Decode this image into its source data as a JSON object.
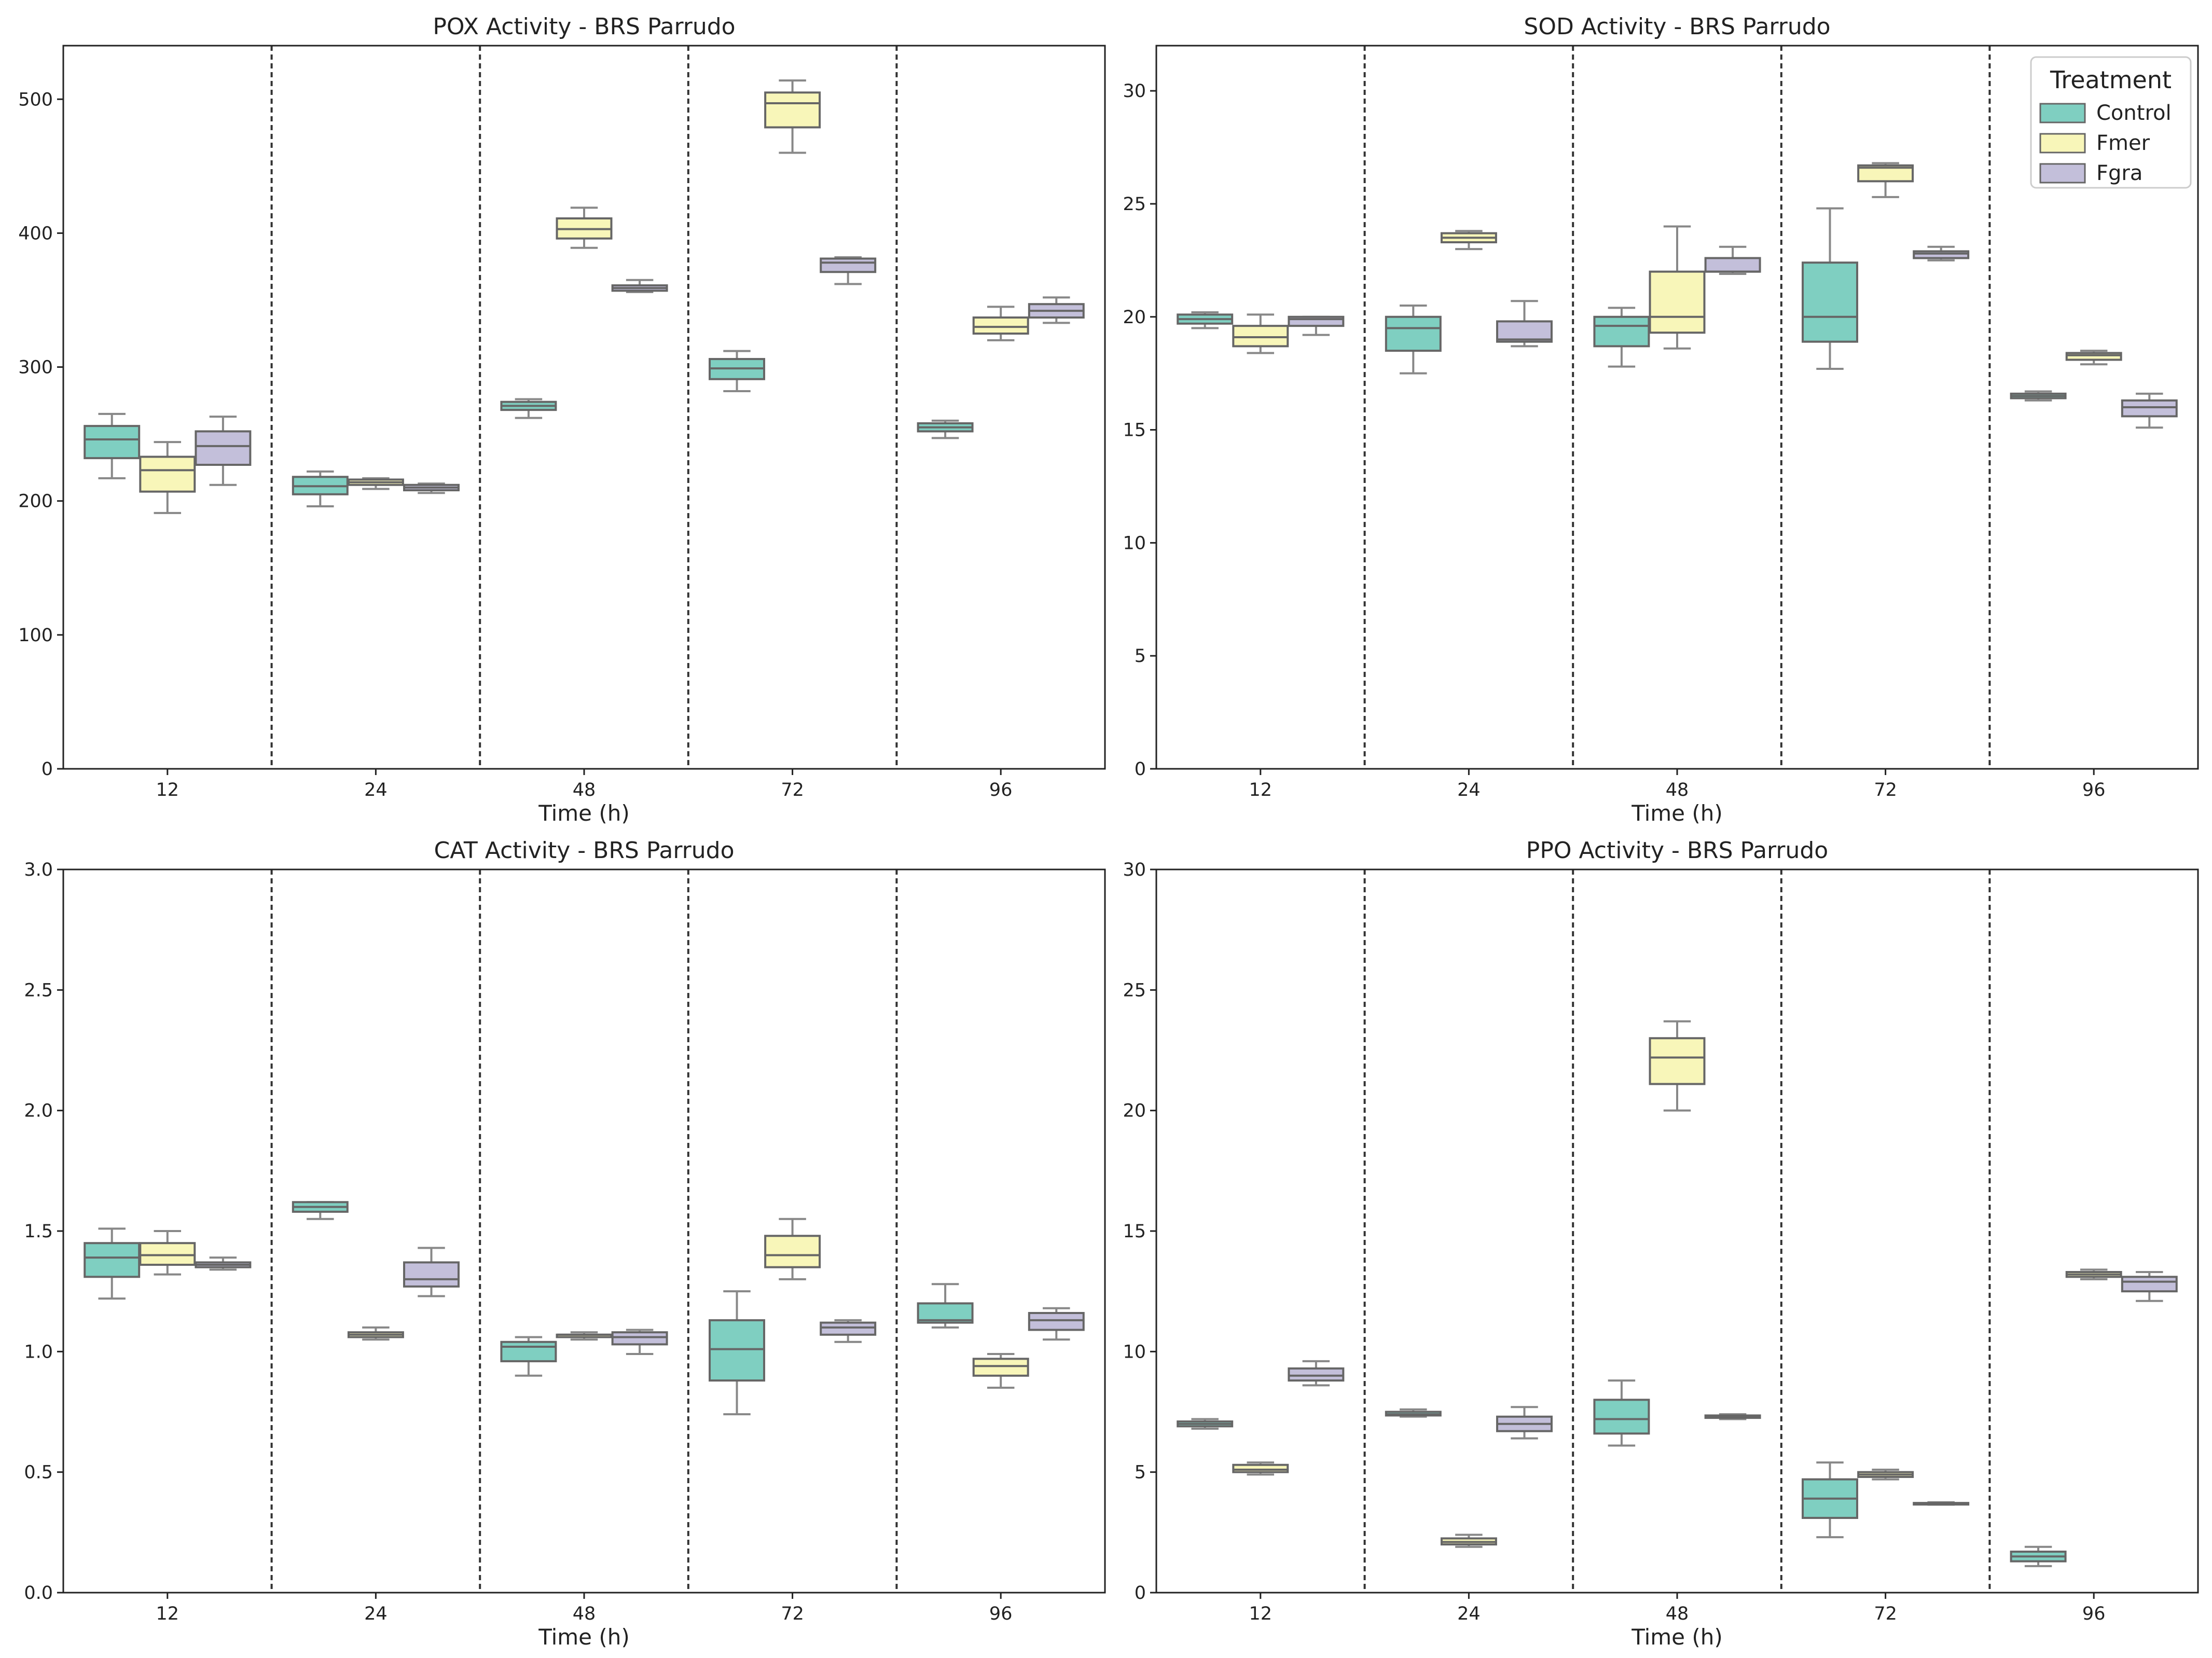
{
  "colors": {
    "Control": "#7fcfc1",
    "Fmer": "#f8f6b9",
    "Fgra": "#c3bfda",
    "median": "#666666",
    "whisker": "#888888",
    "axis": "#222222",
    "divider": "#333333"
  },
  "legend": {
    "title": "Treatment",
    "entries": [
      "Control",
      "Fmer",
      "Fgra"
    ]
  },
  "chart_data": [
    {
      "type": "box",
      "title": "POX Activity - BRS Parrudo",
      "xlabel": "Time (h)",
      "ylabel": "",
      "categories": [
        "12",
        "24",
        "48",
        "72",
        "96"
      ],
      "ylim": [
        0,
        540
      ],
      "yticks": [
        "0",
        "100",
        "200",
        "300",
        "400",
        "500"
      ],
      "grid": false,
      "series": [
        {
          "name": "Control",
          "boxes": [
            {
              "min": 217,
              "q1": 232,
              "median": 246,
              "q3": 256,
              "max": 265
            },
            {
              "min": 196,
              "q1": 205,
              "median": 211,
              "q3": 218,
              "max": 222
            },
            {
              "min": 262,
              "q1": 268,
              "median": 271,
              "q3": 274,
              "max": 276
            },
            {
              "min": 282,
              "q1": 291,
              "median": 299,
              "q3": 306,
              "max": 312
            },
            {
              "min": 247,
              "q1": 252,
              "median": 255,
              "q3": 258,
              "max": 260
            }
          ]
        },
        {
          "name": "Fmer",
          "boxes": [
            {
              "min": 191,
              "q1": 207,
              "median": 223,
              "q3": 233,
              "max": 244
            },
            {
              "min": 209,
              "q1": 212,
              "median": 214,
              "q3": 216,
              "max": 217
            },
            {
              "min": 389,
              "q1": 396,
              "median": 403,
              "q3": 411,
              "max": 419
            },
            {
              "min": 460,
              "q1": 479,
              "median": 497,
              "q3": 505,
              "max": 514
            },
            {
              "min": 320,
              "q1": 325,
              "median": 330,
              "q3": 337,
              "max": 345
            }
          ]
        },
        {
          "name": "Fgra",
          "boxes": [
            {
              "min": 212,
              "q1": 227,
              "median": 241,
              "q3": 252,
              "max": 263
            },
            {
              "min": 206,
              "q1": 208,
              "median": 210,
              "q3": 212,
              "max": 213
            },
            {
              "min": 356,
              "q1": 357,
              "median": 359,
              "q3": 361,
              "max": 365
            },
            {
              "min": 362,
              "q1": 371,
              "median": 378,
              "q3": 381,
              "max": 382
            },
            {
              "min": 333,
              "q1": 337,
              "median": 342,
              "q3": 347,
              "max": 352
            }
          ]
        }
      ]
    },
    {
      "type": "box",
      "title": "SOD Activity - BRS Parrudo",
      "xlabel": "Time (h)",
      "ylabel": "",
      "categories": [
        "12",
        "24",
        "48",
        "72",
        "96"
      ],
      "ylim": [
        0,
        32
      ],
      "yticks": [
        "0",
        "5",
        "10",
        "15",
        "20",
        "25",
        "30"
      ],
      "grid": false,
      "legend_position": "top-right",
      "series": [
        {
          "name": "Control",
          "boxes": [
            {
              "min": 19.5,
              "q1": 19.7,
              "median": 19.9,
              "q3": 20.1,
              "max": 20.2
            },
            {
              "min": 17.5,
              "q1": 18.5,
              "median": 19.5,
              "q3": 20.0,
              "max": 20.5
            },
            {
              "min": 17.8,
              "q1": 18.7,
              "median": 19.6,
              "q3": 20.0,
              "max": 20.4
            },
            {
              "min": 17.7,
              "q1": 18.9,
              "median": 20.0,
              "q3": 22.4,
              "max": 24.8
            },
            {
              "min": 16.3,
              "q1": 16.4,
              "median": 16.5,
              "q3": 16.6,
              "max": 16.7
            }
          ]
        },
        {
          "name": "Fmer",
          "boxes": [
            {
              "min": 18.4,
              "q1": 18.7,
              "median": 19.1,
              "q3": 19.6,
              "max": 20.1
            },
            {
              "min": 23.0,
              "q1": 23.3,
              "median": 23.5,
              "q3": 23.7,
              "max": 23.8
            },
            {
              "min": 18.6,
              "q1": 19.3,
              "median": 20.0,
              "q3": 22.0,
              "max": 24.0
            },
            {
              "min": 25.3,
              "q1": 26.0,
              "median": 26.6,
              "q3": 26.7,
              "max": 26.8
            },
            {
              "min": 17.9,
              "q1": 18.1,
              "median": 18.3,
              "q3": 18.4,
              "max": 18.5
            }
          ]
        },
        {
          "name": "Fgra",
          "boxes": [
            {
              "min": 19.2,
              "q1": 19.6,
              "median": 19.9,
              "q3": 20.0,
              "max": 20.0
            },
            {
              "min": 18.7,
              "q1": 18.9,
              "median": 19.0,
              "q3": 19.8,
              "max": 20.7
            },
            {
              "min": 21.9,
              "q1": 22.0,
              "median": 22.0,
              "q3": 22.6,
              "max": 23.1
            },
            {
              "min": 22.5,
              "q1": 22.6,
              "median": 22.8,
              "q3": 22.9,
              "max": 23.1
            },
            {
              "min": 15.1,
              "q1": 15.6,
              "median": 16.0,
              "q3": 16.3,
              "max": 16.6
            }
          ]
        }
      ]
    },
    {
      "type": "box",
      "title": "CAT Activity - BRS Parrudo",
      "xlabel": "Time (h)",
      "ylabel": "",
      "categories": [
        "12",
        "24",
        "48",
        "72",
        "96"
      ],
      "ylim": [
        0,
        3.0
      ],
      "yticks": [
        "0.0",
        "0.5",
        "1.0",
        "1.5",
        "2.0",
        "2.5",
        "3.0"
      ],
      "grid": false,
      "series": [
        {
          "name": "Control",
          "boxes": [
            {
              "min": 1.22,
              "q1": 1.31,
              "median": 1.39,
              "q3": 1.45,
              "max": 1.51
            },
            {
              "min": 1.55,
              "q1": 1.58,
              "median": 1.6,
              "q3": 1.62,
              "max": 1.62
            },
            {
              "min": 0.9,
              "q1": 0.96,
              "median": 1.02,
              "q3": 1.04,
              "max": 1.06
            },
            {
              "min": 0.74,
              "q1": 0.88,
              "median": 1.01,
              "q3": 1.13,
              "max": 1.25
            },
            {
              "min": 1.1,
              "q1": 1.12,
              "median": 1.13,
              "q3": 1.2,
              "max": 1.28
            }
          ]
        },
        {
          "name": "Fmer",
          "boxes": [
            {
              "min": 1.32,
              "q1": 1.36,
              "median": 1.4,
              "q3": 1.45,
              "max": 1.5
            },
            {
              "min": 1.05,
              "q1": 1.06,
              "median": 1.07,
              "q3": 1.08,
              "max": 1.1
            },
            {
              "min": 1.05,
              "q1": 1.06,
              "median": 1.07,
              "q3": 1.07,
              "max": 1.08
            },
            {
              "min": 1.3,
              "q1": 1.35,
              "median": 1.4,
              "q3": 1.48,
              "max": 1.55
            },
            {
              "min": 0.85,
              "q1": 0.9,
              "median": 0.94,
              "q3": 0.97,
              "max": 0.99
            }
          ]
        },
        {
          "name": "Fgra",
          "boxes": [
            {
              "min": 1.34,
              "q1": 1.35,
              "median": 1.36,
              "q3": 1.37,
              "max": 1.39
            },
            {
              "min": 1.23,
              "q1": 1.27,
              "median": 1.3,
              "q3": 1.37,
              "max": 1.43
            },
            {
              "min": 0.99,
              "q1": 1.03,
              "median": 1.06,
              "q3": 1.08,
              "max": 1.09
            },
            {
              "min": 1.04,
              "q1": 1.07,
              "median": 1.1,
              "q3": 1.12,
              "max": 1.13
            },
            {
              "min": 1.05,
              "q1": 1.09,
              "median": 1.13,
              "q3": 1.16,
              "max": 1.18
            }
          ]
        }
      ]
    },
    {
      "type": "box",
      "title": "PPO Activity - BRS Parrudo",
      "xlabel": "Time (h)",
      "ylabel": "",
      "categories": [
        "12",
        "24",
        "48",
        "72",
        "96"
      ],
      "ylim": [
        0,
        30
      ],
      "yticks": [
        "0",
        "5",
        "10",
        "15",
        "20",
        "25",
        "30"
      ],
      "grid": false,
      "series": [
        {
          "name": "Control",
          "boxes": [
            {
              "min": 6.8,
              "q1": 6.9,
              "median": 7.0,
              "q3": 7.1,
              "max": 7.2
            },
            {
              "min": 7.3,
              "q1": 7.35,
              "median": 7.4,
              "q3": 7.5,
              "max": 7.6
            },
            {
              "min": 6.1,
              "q1": 6.6,
              "median": 7.2,
              "q3": 8.0,
              "max": 8.8
            },
            {
              "min": 2.3,
              "q1": 3.1,
              "median": 3.9,
              "q3": 4.7,
              "max": 5.4
            },
            {
              "min": 1.1,
              "q1": 1.3,
              "median": 1.5,
              "q3": 1.7,
              "max": 1.9
            }
          ]
        },
        {
          "name": "Fmer",
          "boxes": [
            {
              "min": 4.9,
              "q1": 5.0,
              "median": 5.1,
              "q3": 5.3,
              "max": 5.4
            },
            {
              "min": 1.9,
              "q1": 2.0,
              "median": 2.1,
              "q3": 2.25,
              "max": 2.4
            },
            {
              "min": 20.0,
              "q1": 21.1,
              "median": 22.2,
              "q3": 23.0,
              "max": 23.7
            },
            {
              "min": 4.7,
              "q1": 4.8,
              "median": 4.9,
              "q3": 5.0,
              "max": 5.1
            },
            {
              "min": 13.0,
              "q1": 13.1,
              "median": 13.2,
              "q3": 13.3,
              "max": 13.4
            }
          ]
        },
        {
          "name": "Fgra",
          "boxes": [
            {
              "min": 8.6,
              "q1": 8.8,
              "median": 9.0,
              "q3": 9.3,
              "max": 9.6
            },
            {
              "min": 6.4,
              "q1": 6.7,
              "median": 7.0,
              "q3": 7.3,
              "max": 7.7
            },
            {
              "min": 7.2,
              "q1": 7.25,
              "median": 7.3,
              "q3": 7.35,
              "max": 7.4
            },
            {
              "min": 3.65,
              "q1": 3.68,
              "median": 3.7,
              "q3": 3.72,
              "max": 3.75
            },
            {
              "min": 12.1,
              "q1": 12.5,
              "median": 12.9,
              "q3": 13.1,
              "max": 13.3
            }
          ]
        }
      ]
    }
  ]
}
